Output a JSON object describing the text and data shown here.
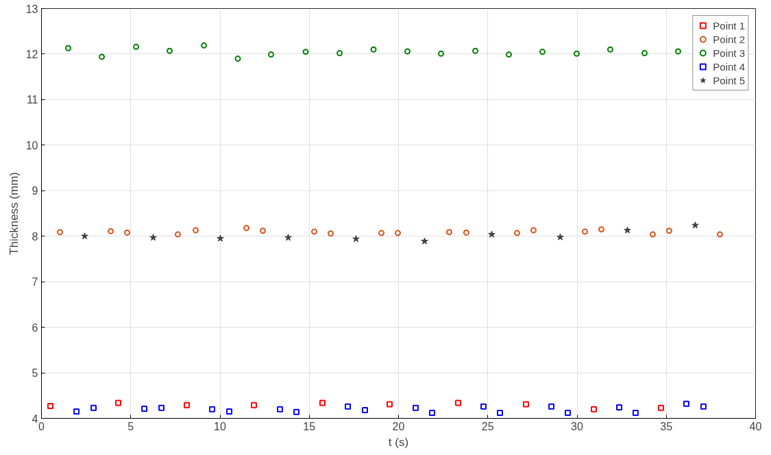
{
  "chart_data": {
    "type": "scatter",
    "xlabel": "t (s)",
    "ylabel": "Thickness (mm)",
    "xlim": [
      0,
      40
    ],
    "ylim": [
      4,
      13
    ],
    "xticks": [
      0,
      5,
      10,
      15,
      20,
      25,
      30,
      35,
      40
    ],
    "yticks": [
      4,
      5,
      6,
      7,
      8,
      9,
      10,
      11,
      12,
      13
    ],
    "grid": true,
    "legend": "top right",
    "series": [
      {
        "name": "Point 1",
        "color": "#ff0000",
        "marker": "square",
        "x": [
          0.5,
          4.3,
          8.14,
          11.9,
          15.74,
          19.5,
          23.34,
          27.14,
          30.94,
          34.7
        ],
        "values": [
          4.27,
          4.34,
          4.29,
          4.29,
          4.34,
          4.31,
          4.34,
          4.31,
          4.2,
          4.23
        ]
      },
      {
        "name": "Point 2",
        "color": "#d95319",
        "marker": "circle",
        "x": [
          1.04,
          3.88,
          4.8,
          7.64,
          8.64,
          11.48,
          12.4,
          15.28,
          16.2,
          19.04,
          19.96,
          22.84,
          23.8,
          26.64,
          27.56,
          30.44,
          31.36,
          34.24,
          35.16,
          38.0
        ],
        "values": [
          8.09,
          8.11,
          8.08,
          8.04,
          8.13,
          8.18,
          8.12,
          8.1,
          8.06,
          8.07,
          8.07,
          8.09,
          8.08,
          8.07,
          8.13,
          8.1,
          8.15,
          8.04,
          8.12,
          8.04
        ]
      },
      {
        "name": "Point 3",
        "color": "#008000",
        "marker": "circle",
        "x": [
          1.5,
          3.38,
          5.3,
          7.18,
          9.1,
          11.0,
          12.86,
          14.8,
          16.7,
          18.6,
          20.5,
          22.38,
          24.3,
          26.18,
          28.06,
          29.98,
          31.86,
          33.78,
          35.66
        ],
        "values": [
          12.13,
          11.94,
          12.16,
          12.07,
          12.19,
          11.9,
          11.99,
          12.05,
          12.02,
          12.1,
          12.06,
          12.01,
          12.07,
          11.99,
          12.05,
          12.01,
          12.1,
          12.02,
          12.06
        ]
      },
      {
        "name": "Point 4",
        "color": "#0000ff",
        "marker": "square",
        "x": [
          1.96,
          2.92,
          5.76,
          6.72,
          9.56,
          10.52,
          13.36,
          14.28,
          17.16,
          18.12,
          20.96,
          21.88,
          24.76,
          25.68,
          28.56,
          29.48,
          32.36,
          33.28,
          36.12,
          37.08
        ],
        "values": [
          4.15,
          4.23,
          4.21,
          4.23,
          4.2,
          4.15,
          4.2,
          4.14,
          4.26,
          4.18,
          4.23,
          4.12,
          4.26,
          4.12,
          4.26,
          4.12,
          4.24,
          4.12,
          4.32,
          4.26
        ]
      },
      {
        "name": "Point 5",
        "color": "#404040",
        "marker": "star",
        "x": [
          2.42,
          6.26,
          10.02,
          13.82,
          17.62,
          21.46,
          25.22,
          29.06,
          32.82,
          36.62
        ],
        "values": [
          8.0,
          7.97,
          7.95,
          7.97,
          7.94,
          7.89,
          8.04,
          7.98,
          8.13,
          8.24
        ]
      }
    ]
  }
}
